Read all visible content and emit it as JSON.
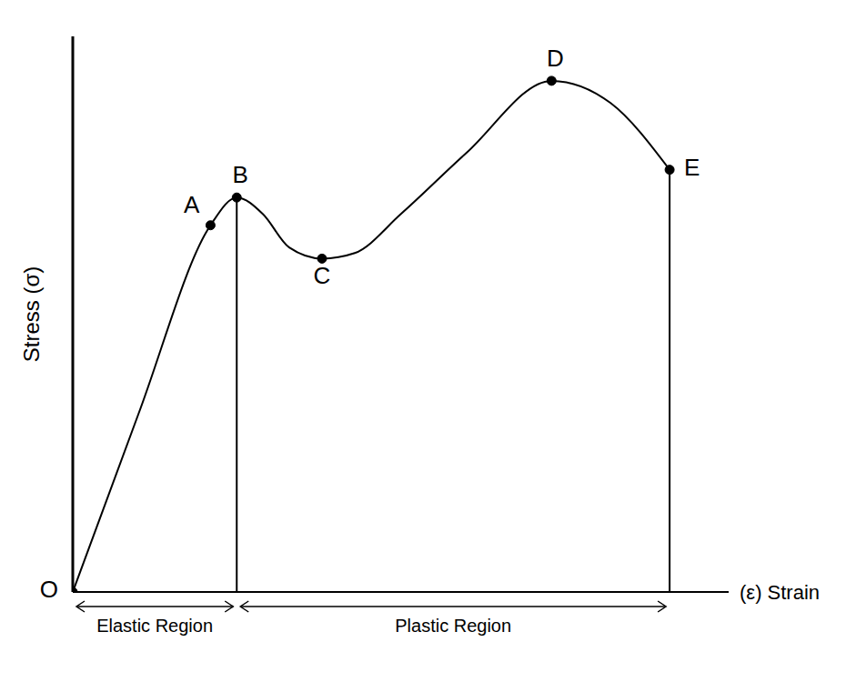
{
  "chart_data": {
    "type": "line",
    "x_label": "(ε) Strain",
    "y_label": "Stress (σ)",
    "xlim": [
      0,
      100
    ],
    "ylim": [
      0,
      100
    ],
    "tick_labels": false,
    "grid": false,
    "color": "#000000",
    "marker": "circle",
    "x": [
      0,
      10,
      21,
      25,
      29,
      33,
      38,
      43,
      50,
      60,
      73,
      82,
      91
    ],
    "values": [
      0,
      32,
      66,
      71,
      68,
      62,
      60,
      61,
      68,
      79,
      92,
      88,
      76
    ],
    "point_labels": [
      "O",
      null,
      "A",
      "B",
      null,
      null,
      "C",
      null,
      null,
      null,
      "D",
      null,
      "E"
    ],
    "annotations": [
      {
        "text": "Elastic Region",
        "x_from": 0,
        "x_to": 25
      },
      {
        "text": "Plastic Region",
        "x_from": 25,
        "x_to": 91
      }
    ],
    "drop_lines": [
      {
        "x": 25,
        "y": 71
      },
      {
        "x": 91,
        "y": 76
      }
    ]
  }
}
